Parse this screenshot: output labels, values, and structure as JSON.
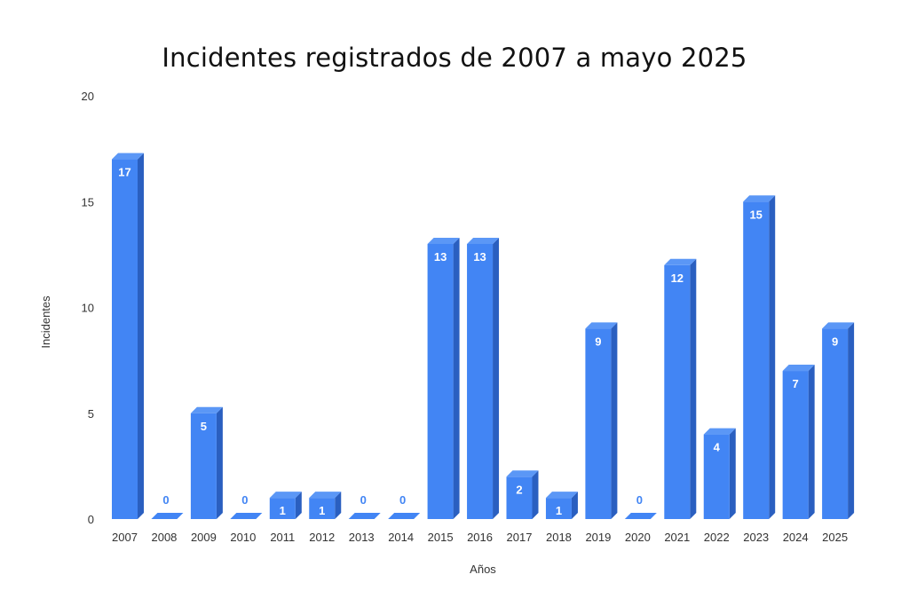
{
  "chart_data": {
    "type": "bar",
    "title": "Incidentes registrados de 2007 a mayo 2025",
    "xlabel": "Años",
    "ylabel": "Incidentes",
    "categories": [
      "2007",
      "2008",
      "2009",
      "2010",
      "2011",
      "2012",
      "2013",
      "2014",
      "2015",
      "2016",
      "2017",
      "2018",
      "2019",
      "2020",
      "2021",
      "2022",
      "2023",
      "2024",
      "2025"
    ],
    "series": [
      {
        "values": [
          17,
          0,
          5,
          0,
          1,
          1,
          0,
          0,
          13,
          13,
          2,
          1,
          9,
          0,
          12,
          4,
          15,
          7,
          9
        ]
      }
    ],
    "ylim": [
      0,
      20
    ],
    "yticks": [
      0,
      5,
      10,
      15,
      20
    ],
    "grid": false,
    "legend": "none",
    "style": "3d-bar",
    "colors": {
      "bar_front": "#4285f4",
      "bar_top": "#5b97f6",
      "bar_side": "#2a5fc0",
      "label_inside": "#ffffff",
      "label_zero": "#4285f4"
    }
  }
}
